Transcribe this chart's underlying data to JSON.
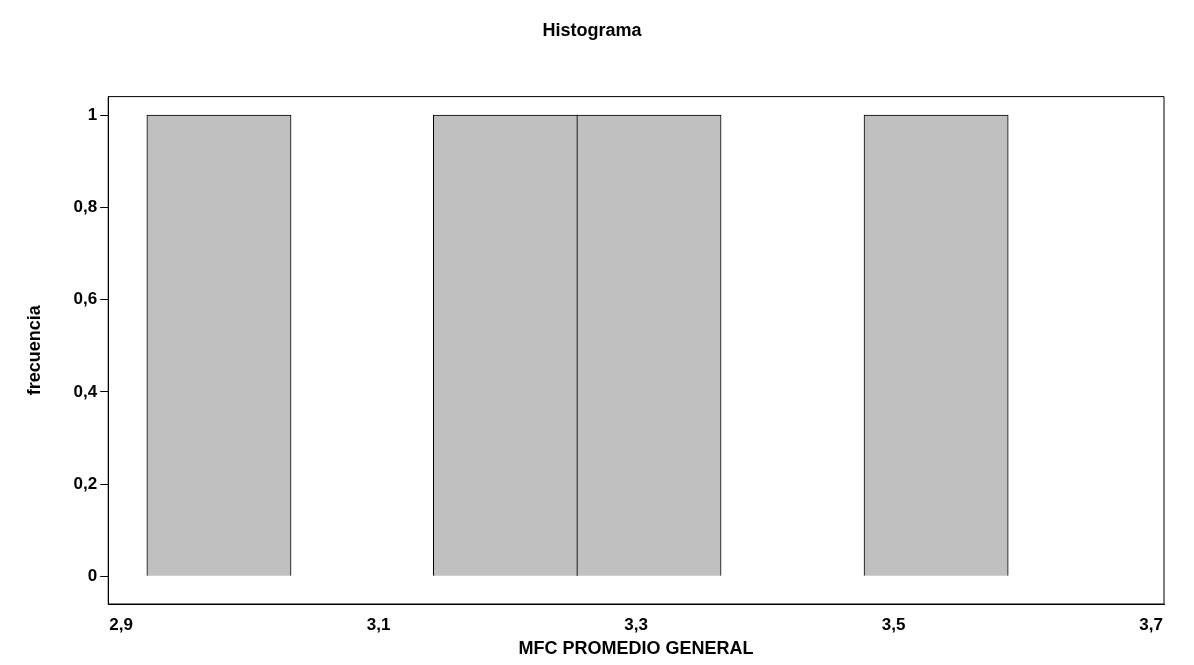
{
  "chart_data": {
    "type": "histogram",
    "title": "Histograma",
    "xlabel": "MFC PROMEDIO GENERAL",
    "ylabel": "frecuencia",
    "bins": [
      2.92,
      3.032,
      3.143,
      3.254,
      3.366,
      3.477,
      3.589
    ],
    "values": [
      1,
      0,
      1,
      1,
      0,
      1
    ],
    "color": "#c0c0c0",
    "xlim": [
      2.89,
      3.71
    ],
    "xticks": [
      {
        "value": 2.9,
        "label": "2,9"
      },
      {
        "value": 3.1,
        "label": "3,1"
      },
      {
        "value": 3.3,
        "label": "3,3"
      },
      {
        "value": 3.5,
        "label": "3,5"
      },
      {
        "value": 3.7,
        "label": "3,7"
      }
    ],
    "ylim": [
      -0.06,
      1.04
    ],
    "yticks": [
      0,
      {
        "value": 0.2,
        "label": "0,2"
      },
      {
        "value": 0.4,
        "label": "0,4"
      },
      {
        "value": 0.6,
        "label": "0,6"
      },
      {
        "value": 0.8,
        "label": "0,8"
      },
      1
    ],
    "grid": false,
    "legend": false
  }
}
